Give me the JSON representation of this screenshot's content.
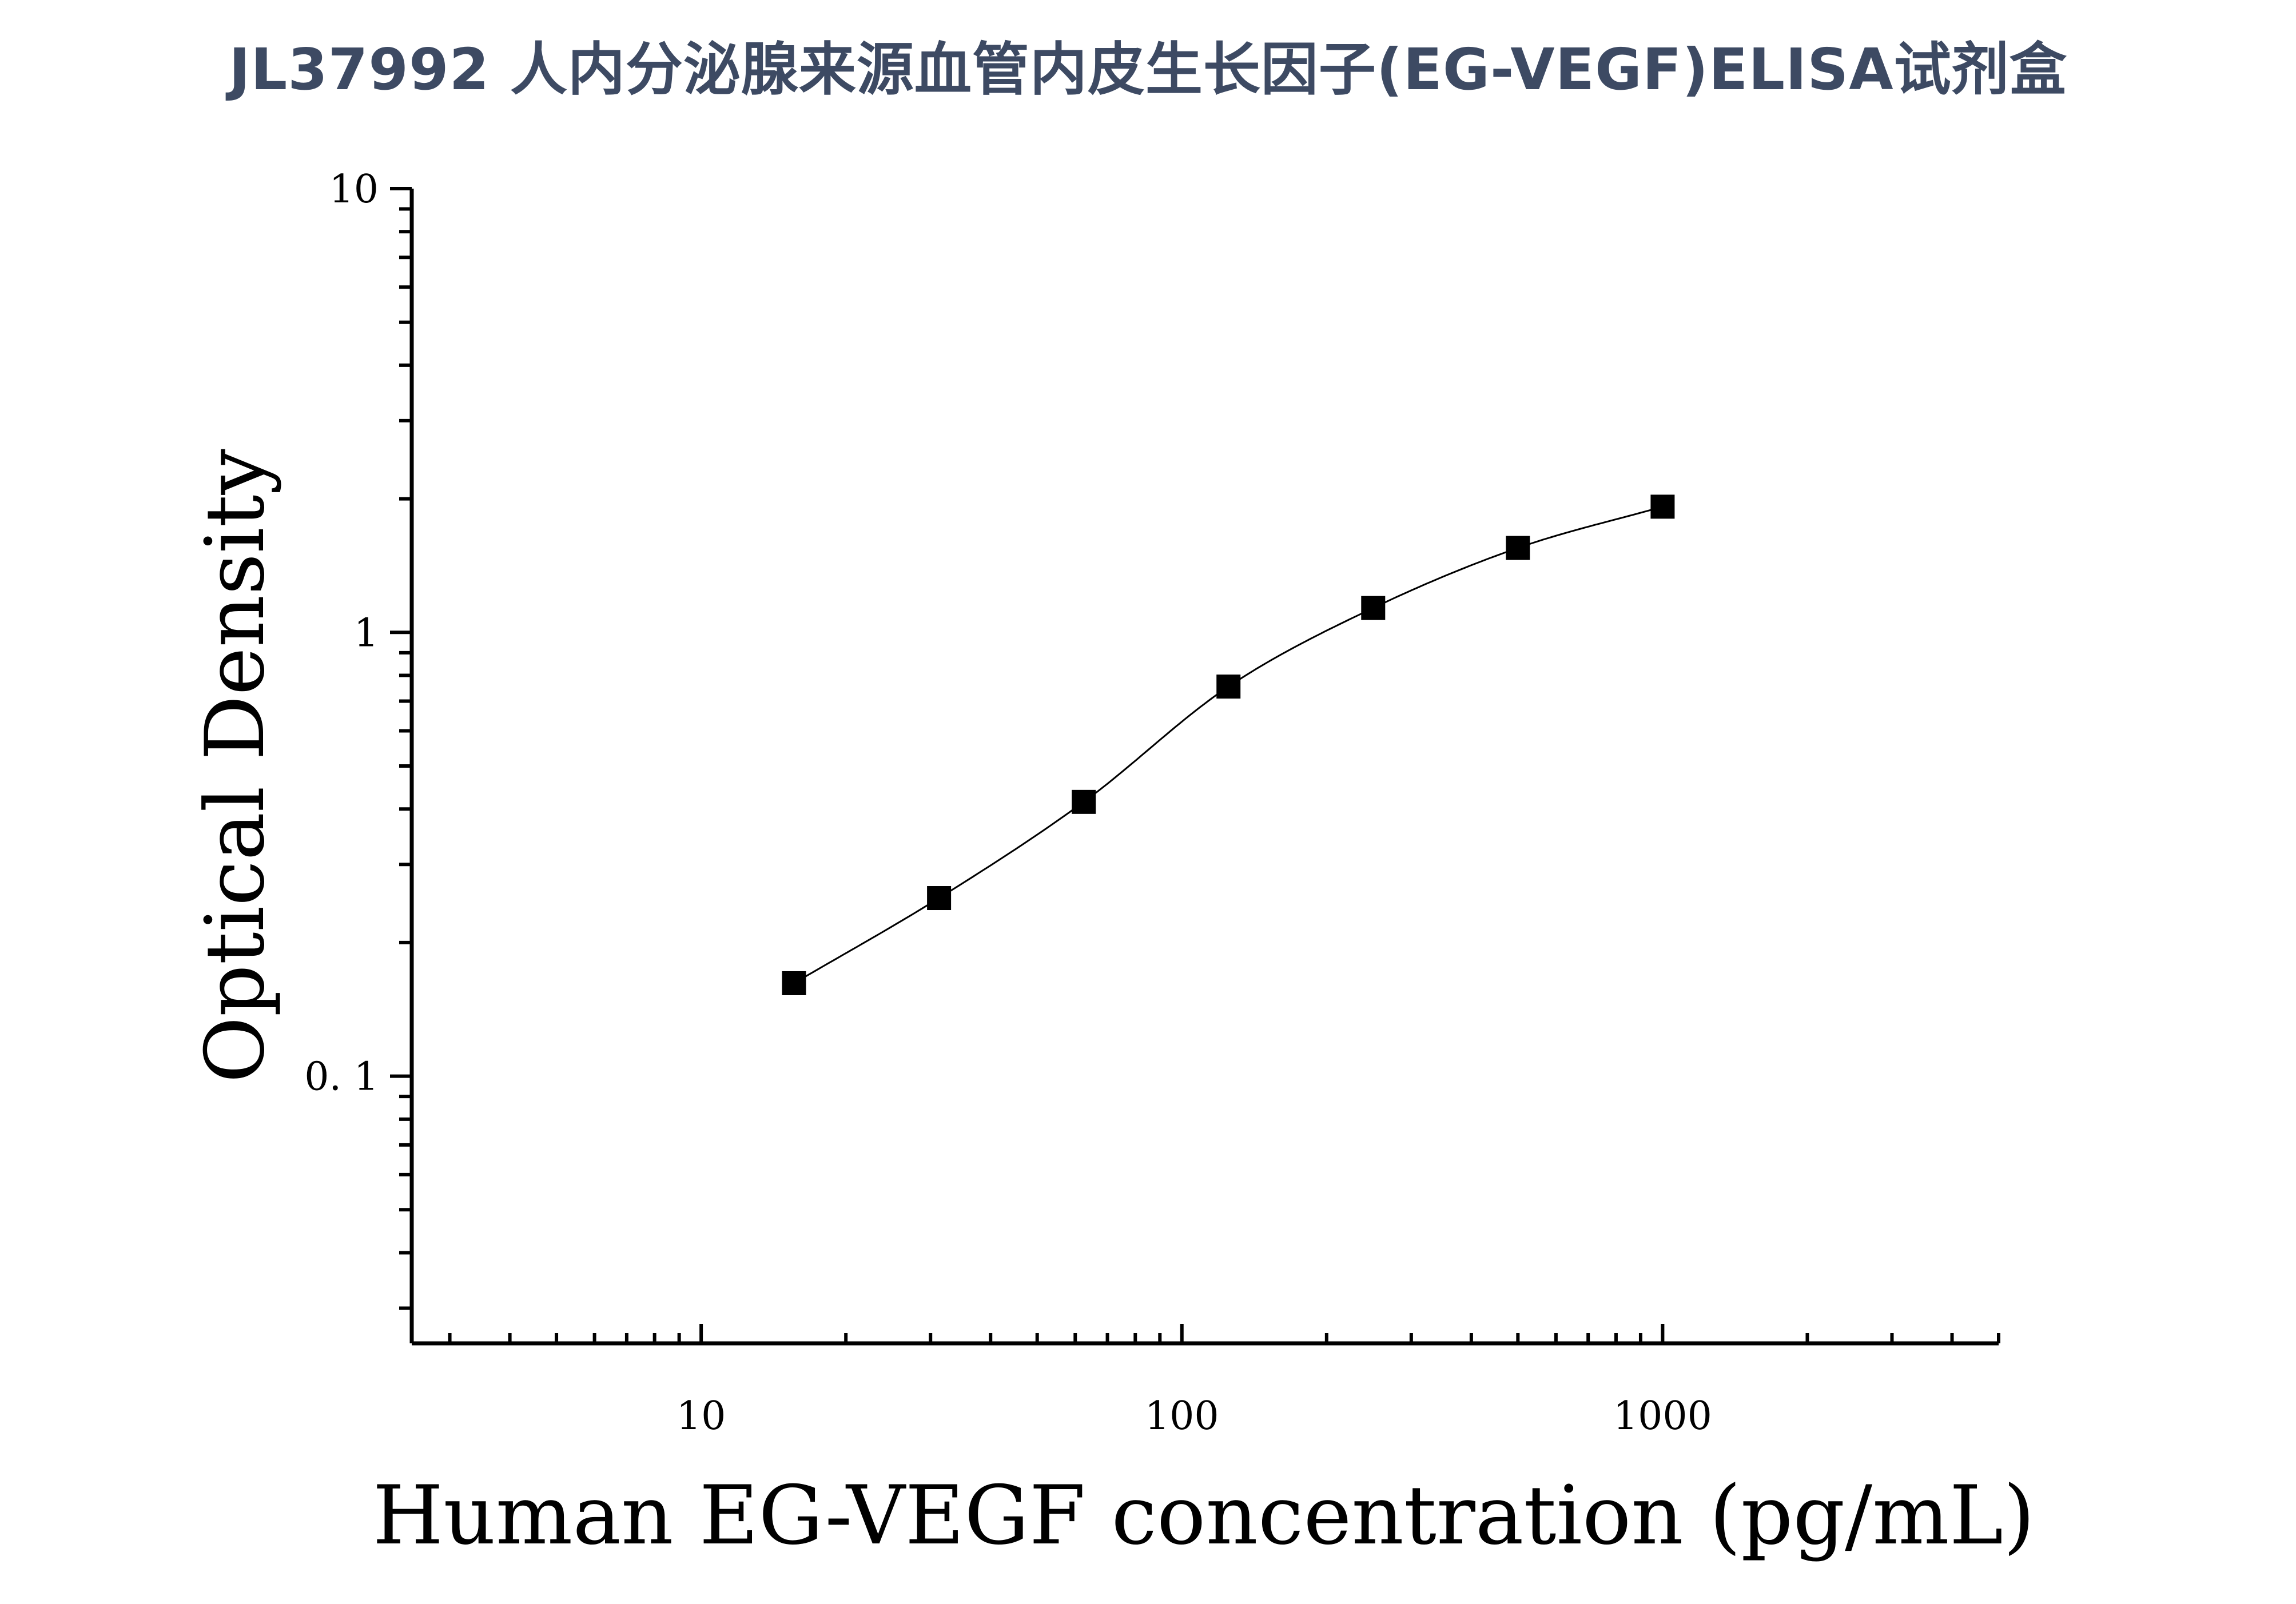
{
  "title": "JL37992 人内分泌腺来源血管内皮生长因子(EG-VEGF)ELISA试剂盒",
  "chart_data": {
    "type": "scatter",
    "xlabel": "Human EG-VEGF concentration (pg/mL)",
    "ylabel": "Optical Density",
    "xscale": "log",
    "yscale": "log",
    "xlim": [
      2.5,
      5000
    ],
    "ylim": [
      0.025,
      10
    ],
    "xticks": [
      10,
      100,
      1000
    ],
    "xtick_labels": [
      "10",
      "100",
      "1000"
    ],
    "yticks": [
      0.1,
      1,
      10
    ],
    "ytick_labels": [
      "0. 1",
      "1",
      "10"
    ],
    "grid": false,
    "legend": "none",
    "marker": "square",
    "series": [
      {
        "x": [
          15.6,
          31.25,
          62.5,
          125,
          250,
          500,
          1000
        ],
        "y": [
          0.162,
          0.252,
          0.415,
          0.755,
          1.135,
          1.55,
          1.92
        ]
      }
    ],
    "fit_curve": true,
    "colors": {
      "marker": "#000000",
      "curve": "#000000",
      "axis": "#000000",
      "title": "#3d4a63"
    }
  }
}
